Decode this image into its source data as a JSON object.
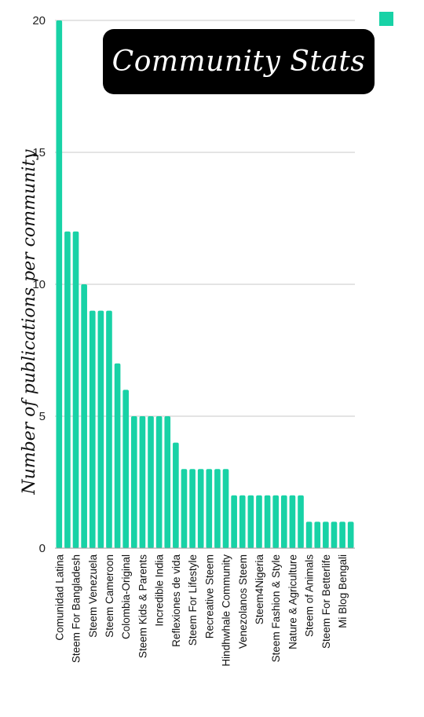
{
  "chart_data": {
    "type": "bar",
    "title": "Community Stats",
    "ylabel": "Number of publications per community",
    "xlabel": "",
    "ylim": [
      0,
      20
    ],
    "yticks": [
      0,
      5,
      10,
      15,
      20
    ],
    "grid": true,
    "legend": "top-right",
    "bar_color": "#18d2a6",
    "labeled_every": 2,
    "categories": [
      "Comunidad Latina",
      "",
      "Steem For Bangladesh",
      "",
      "Steem Venezuela",
      "",
      "Steem Cameroon",
      "",
      "Colombia-Original",
      "",
      "Steem Kids & Parents",
      "",
      "Incredible India",
      "",
      "Reflexiones de vida",
      "",
      "Steem For Lifestyle",
      "",
      "Recreative Steem",
      "",
      "Hindhwhale Community",
      "",
      "Venezolanos Steem",
      "",
      "Steem4Nigeria",
      "",
      "Steem Fashion & Style",
      "",
      "Nature & Agriculture",
      "",
      "Steem of Animals",
      "",
      "Steem For Betterlife",
      "",
      "Mi Blog Bengali",
      ""
    ],
    "values": [
      20,
      12,
      12,
      10,
      9,
      9,
      9,
      7,
      6,
      5,
      5,
      5,
      5,
      5,
      4,
      3,
      3,
      3,
      3,
      3,
      3,
      2,
      2,
      2,
      2,
      2,
      2,
      2,
      2,
      2,
      1,
      1,
      1,
      1,
      1,
      1
    ]
  }
}
